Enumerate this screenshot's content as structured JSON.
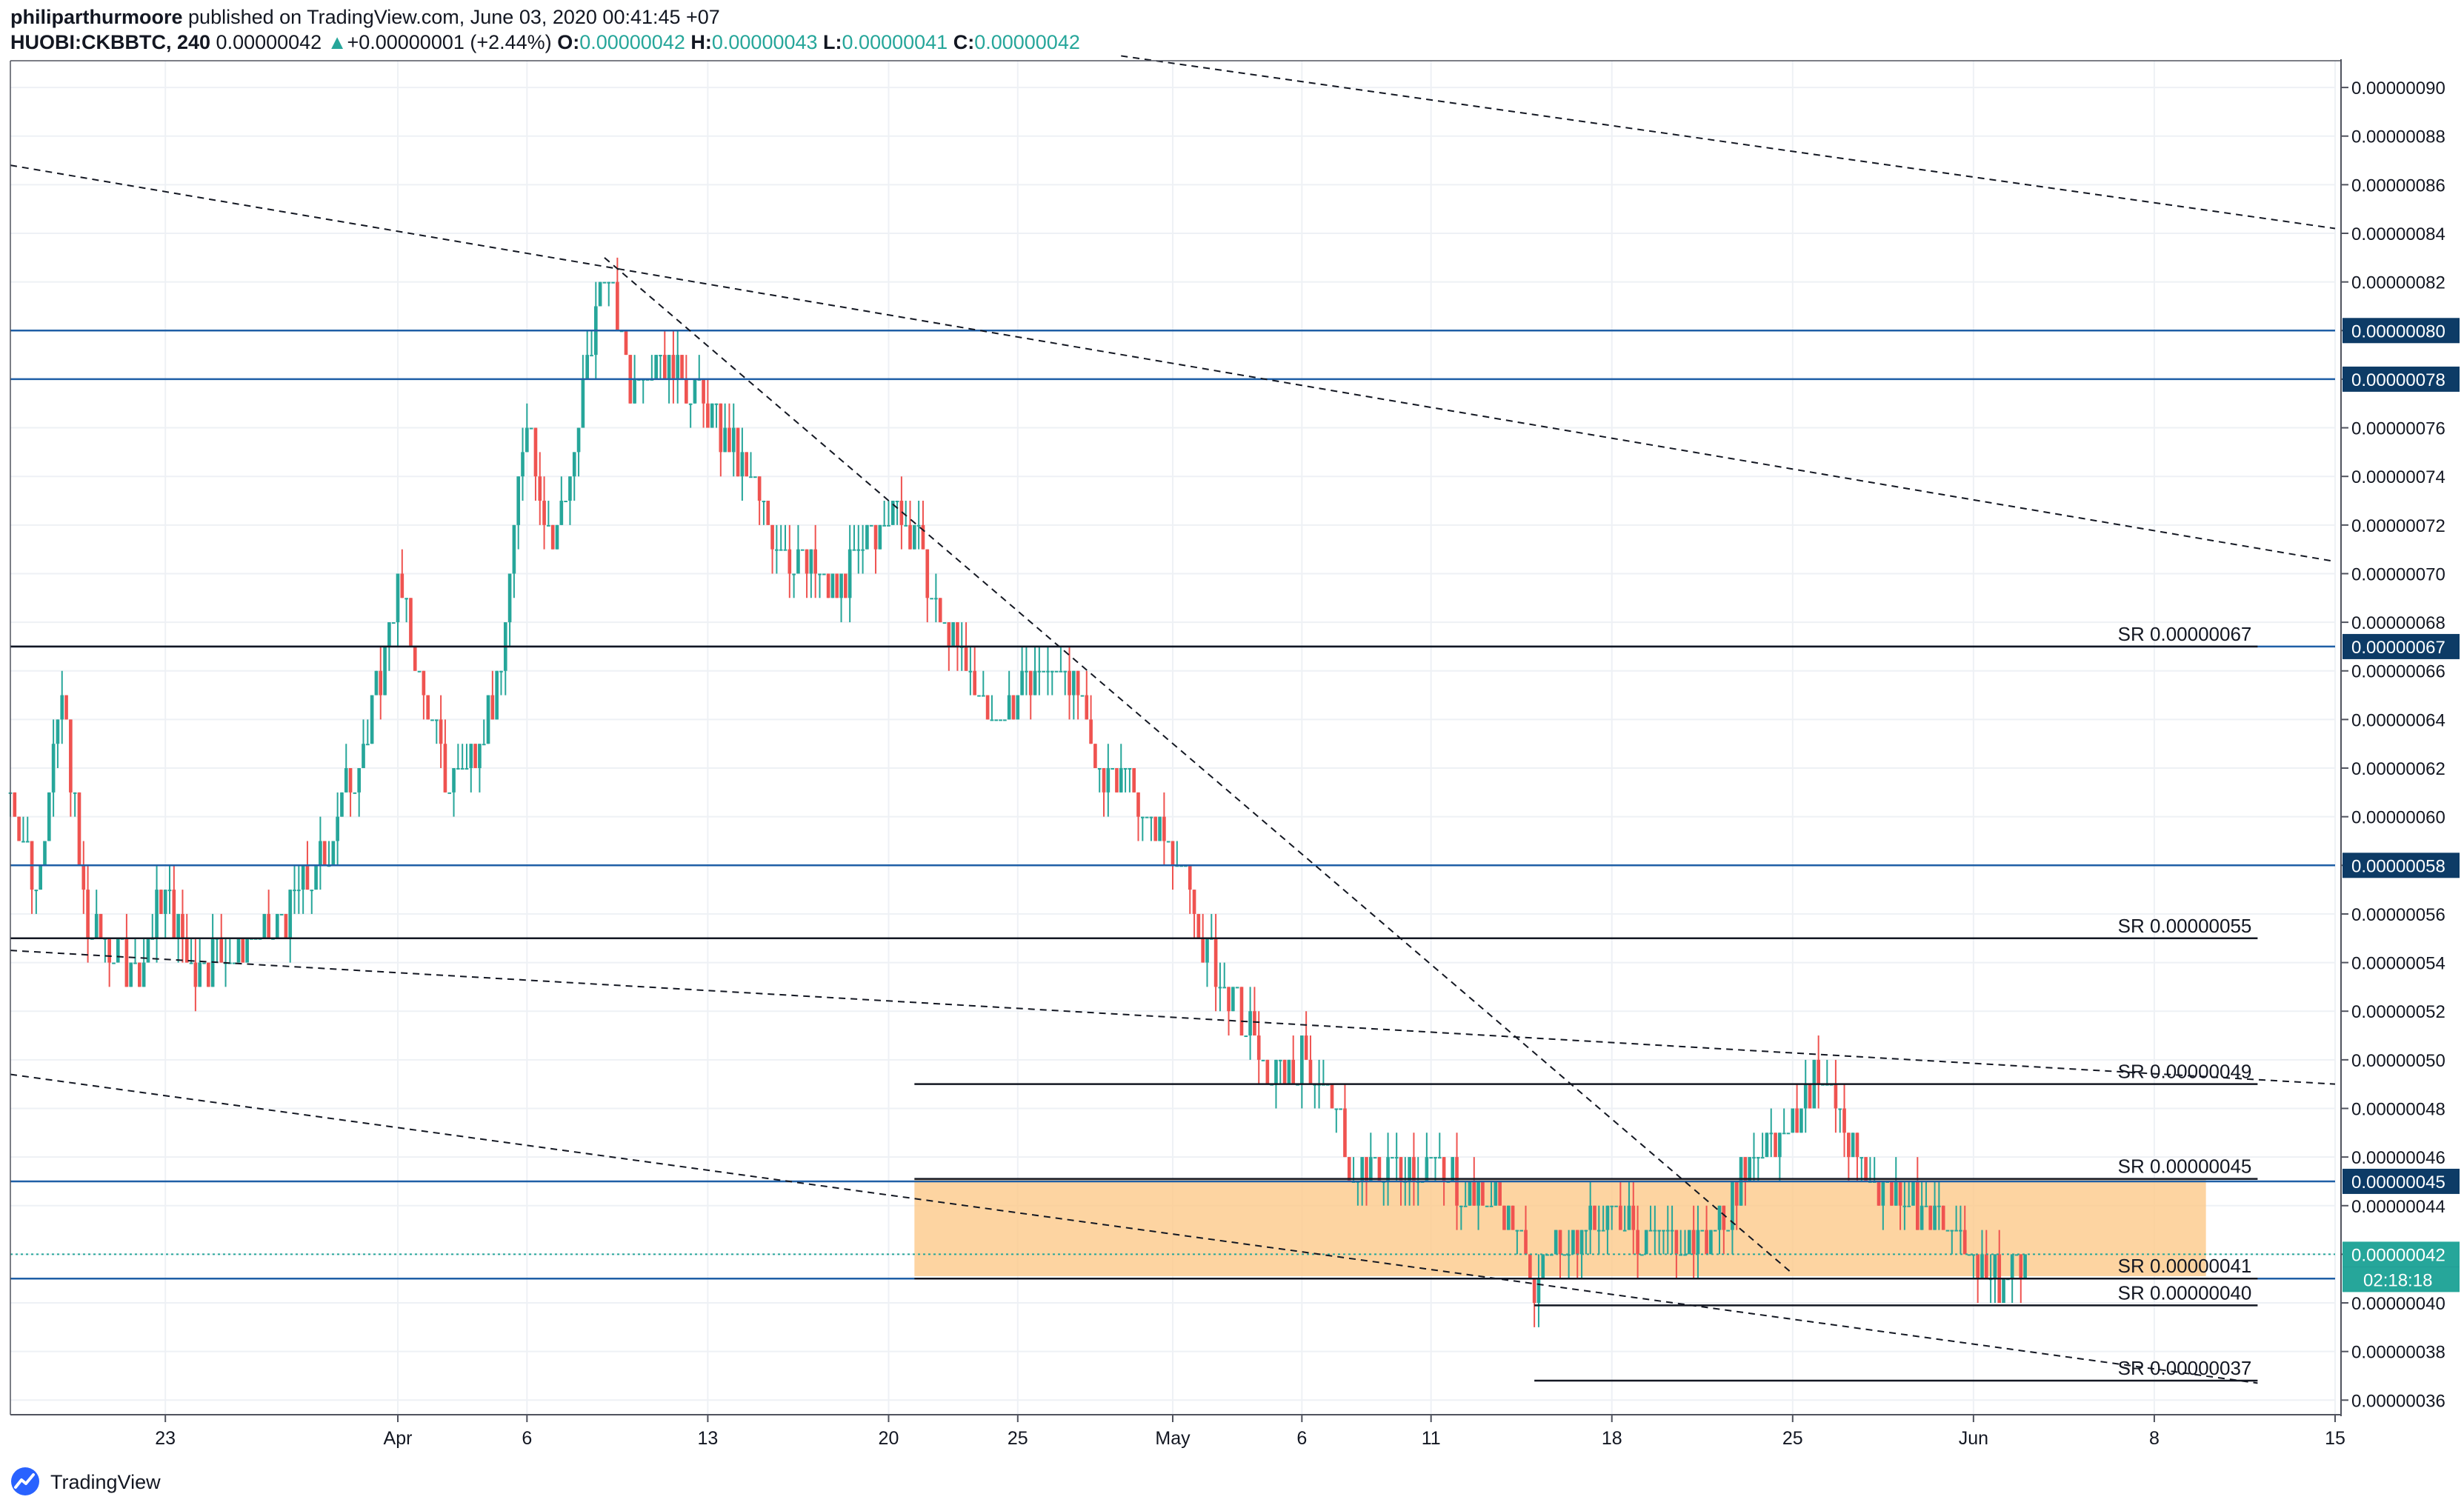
{
  "header": {
    "author": "philiparthurmoore",
    "published_text": "published on TradingView.com, June 03, 2020 00:41:45 +07",
    "symbol": "HUOBI:CKBBTC, 240",
    "last_price": "0.00000042",
    "change": "+0.00000001 (+2.44%)",
    "change_arrow": "▲",
    "ohlc": {
      "o_label": "O:",
      "o": "0.00000042",
      "h_label": "H:",
      "h": "0.00000043",
      "l_label": "L:",
      "l": "0.00000041",
      "c_label": "C:",
      "c": "0.00000042"
    }
  },
  "footer": {
    "brand": "TradingView",
    "logo_icon": "tradingview-logo-icon"
  },
  "colors": {
    "up": "#26a69a",
    "down": "#ef5350",
    "blue_line": "#1f5fa6",
    "label_bg": "#0d3b66",
    "zone_fill": "#fcc98a",
    "price_line": "#26a69a"
  },
  "chart_data": {
    "type": "candlestick",
    "timeframe": "240",
    "y_axis": {
      "side": "right",
      "ylim": [
        3.54e-07,
        9.11e-07
      ],
      "ticks": [
        "0.00000036",
        "0.00000038",
        "0.00000040",
        "0.00000042",
        "0.00000044",
        "0.00000046",
        "0.00000048",
        "0.00000050",
        "0.00000052",
        "0.00000054",
        "0.00000056",
        "0.00000058",
        "0.00000060",
        "0.00000062",
        "0.00000064",
        "0.00000066",
        "0.00000068",
        "0.00000070",
        "0.00000072",
        "0.00000074",
        "0.00000076",
        "0.00000078",
        "0.00000080",
        "0.00000082",
        "0.00000084",
        "0.00000086",
        "0.00000088",
        "0.00000090"
      ],
      "tick_values": [
        3.6e-07,
        3.8e-07,
        4e-07,
        4.2e-07,
        4.4e-07,
        4.6e-07,
        4.8e-07,
        5e-07,
        5.2e-07,
        5.4e-07,
        5.6e-07,
        5.8e-07,
        6e-07,
        6.2e-07,
        6.4e-07,
        6.6e-07,
        6.8e-07,
        7e-07,
        7.2e-07,
        7.4e-07,
        7.6e-07,
        7.8e-07,
        8e-07,
        8.2e-07,
        8.4e-07,
        8.6e-07,
        8.8e-07,
        9e-07
      ]
    },
    "x_axis": {
      "xlim": [
        "2020-03-17",
        "2020-06-15"
      ],
      "ticks": [
        {
          "date": "2020-03-23",
          "label": "23"
        },
        {
          "date": "2020-04-01",
          "label": "Apr"
        },
        {
          "date": "2020-04-06",
          "label": "6"
        },
        {
          "date": "2020-04-13",
          "label": "13"
        },
        {
          "date": "2020-04-20",
          "label": "20"
        },
        {
          "date": "2020-04-25",
          "label": "25"
        },
        {
          "date": "2020-05-01",
          "label": "May"
        },
        {
          "date": "2020-05-06",
          "label": "6"
        },
        {
          "date": "2020-05-11",
          "label": "11"
        },
        {
          "date": "2020-05-18",
          "label": "18"
        },
        {
          "date": "2020-05-25",
          "label": "25"
        },
        {
          "date": "2020-06-01",
          "label": "Jun"
        },
        {
          "date": "2020-06-08",
          "label": "8"
        },
        {
          "date": "2020-06-15",
          "label": "15"
        }
      ]
    },
    "grid": true,
    "price_path": [
      [
        "2020-03-17",
        6.1e-07
      ],
      [
        "2020-03-18",
        5.7e-07
      ],
      [
        "2020-03-19",
        6.5e-07
      ],
      [
        "2020-03-20",
        5.5e-07
      ],
      [
        "2020-03-22",
        5.4e-07
      ],
      [
        "2020-03-23",
        5.7e-07
      ],
      [
        "2020-03-24",
        5.4e-07
      ],
      [
        "2020-03-27",
        5.5e-07
      ],
      [
        "2020-03-29",
        5.8e-07
      ],
      [
        "2020-03-31",
        6.4e-07
      ],
      [
        "2020-04-01",
        7e-07
      ],
      [
        "2020-04-02",
        6.5e-07
      ],
      [
        "2020-04-03",
        6.1e-07
      ],
      [
        "2020-04-04",
        6.3e-07
      ],
      [
        "2020-04-05",
        6.6e-07
      ],
      [
        "2020-04-06",
        7.7e-07
      ],
      [
        "2020-04-07",
        7.1e-07
      ],
      [
        "2020-04-08",
        7.6e-07
      ],
      [
        "2020-04-09",
        8.3e-07
      ],
      [
        "2020-04-10",
        7.8e-07
      ],
      [
        "2020-04-11",
        7.9e-07
      ],
      [
        "2020-04-12",
        7.8e-07
      ],
      [
        "2020-04-13",
        7.7e-07
      ],
      [
        "2020-04-14",
        7.5e-07
      ],
      [
        "2020-04-15",
        7.3e-07
      ],
      [
        "2020-04-16",
        7.1e-07
      ],
      [
        "2020-04-17",
        7e-07
      ],
      [
        "2020-04-18",
        6.9e-07
      ],
      [
        "2020-04-19",
        7.1e-07
      ],
      [
        "2020-04-20",
        7.3e-07
      ],
      [
        "2020-04-21",
        7.2e-07
      ],
      [
        "2020-04-22",
        6.8e-07
      ],
      [
        "2020-04-23",
        6.6e-07
      ],
      [
        "2020-04-24",
        6.4e-07
      ],
      [
        "2020-04-25",
        6.5e-07
      ],
      [
        "2020-04-26",
        6.6e-07
      ],
      [
        "2020-04-27",
        6.6e-07
      ],
      [
        "2020-04-28",
        6.2e-07
      ],
      [
        "2020-04-29",
        6.2e-07
      ],
      [
        "2020-04-30",
        6e-07
      ],
      [
        "2020-05-01",
        5.9e-07
      ],
      [
        "2020-05-02",
        5.5e-07
      ],
      [
        "2020-05-03",
        5.3e-07
      ],
      [
        "2020-05-04",
        5.1e-07
      ],
      [
        "2020-05-05",
        4.9e-07
      ],
      [
        "2020-05-06",
        5e-07
      ],
      [
        "2020-05-07",
        4.9e-07
      ],
      [
        "2020-05-08",
        4.5e-07
      ],
      [
        "2020-05-10",
        4.6e-07
      ],
      [
        "2020-05-12",
        4.5e-07
      ],
      [
        "2020-05-14",
        4.4e-07
      ],
      [
        "2020-05-15",
        4.1e-07
      ],
      [
        "2020-05-16",
        4.2e-07
      ],
      [
        "2020-05-18",
        4.4e-07
      ],
      [
        "2020-05-20",
        4.2e-07
      ],
      [
        "2020-05-22",
        4.3e-07
      ],
      [
        "2020-05-24",
        4.7e-07
      ],
      [
        "2020-05-25",
        4.7e-07
      ],
      [
        "2020-05-26",
        5e-07
      ],
      [
        "2020-05-27",
        4.7e-07
      ],
      [
        "2020-05-28",
        4.5e-07
      ],
      [
        "2020-05-30",
        4.4e-07
      ],
      [
        "2020-05-31",
        4.3e-07
      ],
      [
        "2020-06-01",
        4.2e-07
      ],
      [
        "2020-06-02",
        4.1e-07
      ],
      [
        "2020-06-03",
        4.2e-07
      ]
    ],
    "horizontal_levels": [
      {
        "price": 8e-07,
        "label": "0.00000080",
        "style": "blue-solid"
      },
      {
        "price": 7.8e-07,
        "label": "0.00000078",
        "style": "blue-solid"
      },
      {
        "price": 6.7e-07,
        "label": "0.00000067",
        "style": "blue-solid"
      },
      {
        "price": 5.8e-07,
        "label": "0.00000058",
        "style": "blue-solid"
      },
      {
        "price": 4.5e-07,
        "label": "0.00000045",
        "style": "blue-solid"
      },
      {
        "price": 4.1e-07,
        "label": "0.00000041",
        "style": "blue-solid"
      }
    ],
    "sr_levels": [
      {
        "price": 6.7e-07,
        "label": "SR 0.00000067",
        "from": "2020-03-17",
        "to": "2020-06-12"
      },
      {
        "price": 5.5e-07,
        "label": "SR 0.00000055",
        "from": "2020-03-17",
        "to": "2020-06-12"
      },
      {
        "price": 4.9e-07,
        "label": "SR 0.00000049",
        "from": "2020-04-21",
        "to": "2020-06-12"
      },
      {
        "price": 4.51e-07,
        "label": "SR 0.00000045",
        "from": "2020-04-21",
        "to": "2020-06-12"
      },
      {
        "price": 4.1e-07,
        "label": "SR 0.00000041",
        "from": "2020-04-21",
        "to": "2020-06-12"
      },
      {
        "price": 3.99e-07,
        "label": "SR 0.00000040",
        "from": "2020-05-15",
        "to": "2020-06-12"
      },
      {
        "price": 3.68e-07,
        "label": "SR 0.00000037",
        "from": "2020-05-15",
        "to": "2020-06-12"
      }
    ],
    "trend_lines": [
      {
        "from": [
          "2020-03-17",
          8.68e-07
        ],
        "to": [
          "2020-06-15",
          7.05e-07
        ]
      },
      {
        "from": [
          "2020-04-29",
          9.13e-07
        ],
        "to": [
          "2020-06-15",
          8.42e-07
        ]
      },
      {
        "from": [
          "2020-03-17",
          5.45e-07
        ],
        "to": [
          "2020-06-15",
          4.9e-07
        ]
      },
      {
        "from": [
          "2020-03-17",
          4.94e-07
        ],
        "to": [
          "2020-06-12",
          3.67e-07
        ]
      },
      {
        "from": [
          "2020-04-09",
          8.3e-07
        ],
        "to": [
          "2020-05-25",
          4.12e-07
        ]
      }
    ],
    "zone": {
      "from": "2020-04-21",
      "to": "2020-06-10",
      "top": 4.51e-07,
      "bottom": 4.11e-07
    },
    "current_price": {
      "price": 4.2e-07,
      "label": "0.00000042",
      "countdown": "02:18:18"
    }
  }
}
